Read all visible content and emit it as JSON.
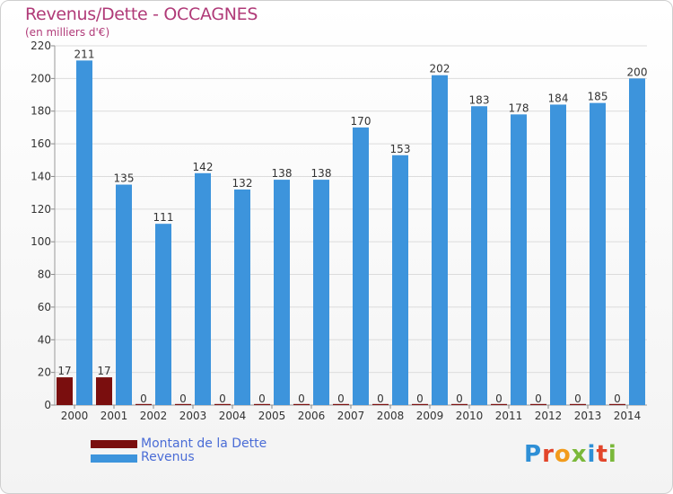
{
  "chart_data": {
    "type": "bar",
    "title": "Revenus/Dette - OCCAGNES",
    "subtitle": "(en milliers d'€)",
    "categories": [
      "2000",
      "2001",
      "2002",
      "2003",
      "2004",
      "2005",
      "2006",
      "2007",
      "2008",
      "2009",
      "2010",
      "2011",
      "2012",
      "2013",
      "2014"
    ],
    "series": [
      {
        "name": "Montant de la Dette",
        "color": "#7a0e0e",
        "values": [
          17,
          17,
          0,
          0,
          0,
          0,
          0,
          0,
          0,
          0,
          0,
          0,
          0,
          0,
          0
        ]
      },
      {
        "name": "Revenus",
        "color": "#3d94dc",
        "values": [
          211,
          135,
          111,
          142,
          132,
          138,
          138,
          170,
          153,
          202,
          183,
          178,
          184,
          185,
          200
        ]
      }
    ],
    "ylim": [
      0,
      220
    ],
    "yticks": [
      0,
      20,
      40,
      60,
      80,
      100,
      120,
      140,
      160,
      180,
      200,
      220
    ],
    "grid": true,
    "legend_placement": "bottom-left"
  },
  "logo": {
    "letters": [
      "P",
      "r",
      "o",
      "x",
      "i",
      "t",
      "i"
    ],
    "colors": [
      "#2e8fd6",
      "#e2452a",
      "#f29b1c",
      "#7ab83a",
      "#2e8fd6",
      "#e2452a",
      "#7ab83a"
    ]
  }
}
